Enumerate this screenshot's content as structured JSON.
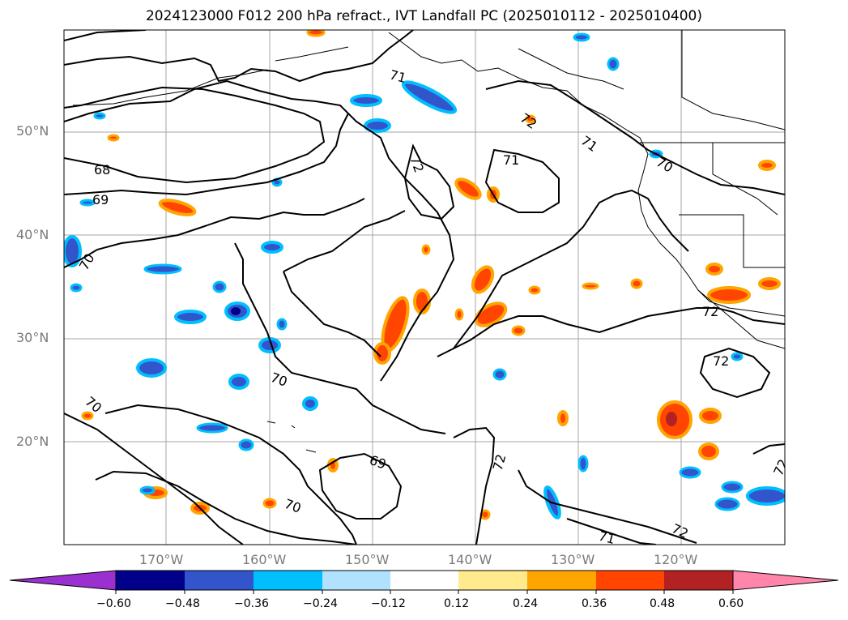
{
  "title": "2024123000 F012 200 hPa refract., IVT Landfall PC (2025010112 - 2025010400)",
  "lat_labels": [
    "50°N",
    "40°N",
    "30°N",
    "20°N"
  ],
  "lon_labels": [
    "170°W",
    "160°W",
    "150°W",
    "140°W",
    "130°W",
    "120°W"
  ],
  "contour_labels": [
    "71",
    "72",
    "71",
    "71",
    "70",
    "72",
    "68",
    "69",
    "70",
    "70",
    "70",
    "69",
    "72",
    "72",
    "72",
    "70",
    "71",
    "72",
    "72"
  ],
  "colorbar": {
    "ticks": [
      "−0.60",
      "−0.48",
      "−0.36",
      "−0.24",
      "−0.12",
      "0.12",
      "0.24",
      "0.36",
      "0.48",
      "0.60"
    ],
    "colors": [
      "#9b30d0",
      "#00008b",
      "#3355cc",
      "#00bfff",
      "#b0e2ff",
      "#ffffff",
      "#ffeb8c",
      "#ffa500",
      "#ff4500",
      "#b22222",
      "#ff85aa"
    ]
  }
}
